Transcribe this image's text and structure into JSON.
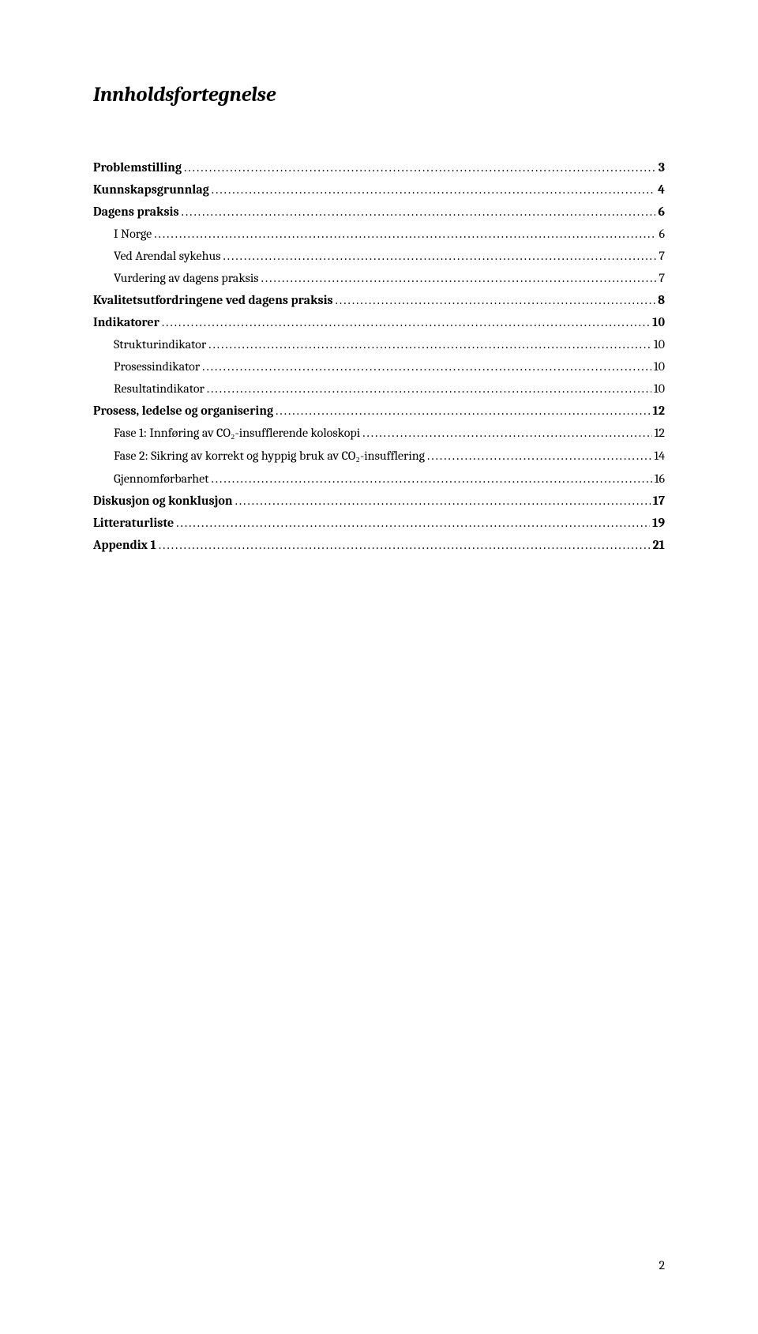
{
  "title": "Innholdsfortegnelse",
  "toc": [
    {
      "label": "Problemstilling",
      "page": "3",
      "bold": true,
      "indent": 0
    },
    {
      "label": "Kunnskapsgrunnlag",
      "page": "4",
      "bold": true,
      "indent": 0
    },
    {
      "label": "Dagens praksis",
      "page": "6",
      "bold": true,
      "indent": 0
    },
    {
      "label": "I Norge",
      "page": "6",
      "bold": false,
      "indent": 1
    },
    {
      "label": "Ved Arendal sykehus",
      "page": "7",
      "bold": false,
      "indent": 1
    },
    {
      "label": "Vurdering av dagens praksis",
      "page": "7",
      "bold": false,
      "indent": 1
    },
    {
      "label": "Kvalitetsutfordringene ved dagens praksis",
      "page": "8",
      "bold": true,
      "indent": 0
    },
    {
      "label": "Indikatorer",
      "page": "10",
      "bold": true,
      "indent": 0
    },
    {
      "label": "Strukturindikator",
      "page": "10",
      "bold": false,
      "indent": 1
    },
    {
      "label": "Prosessindikator",
      "page": "10",
      "bold": false,
      "indent": 1
    },
    {
      "label": "Resultatindikator",
      "page": "10",
      "bold": false,
      "indent": 1
    },
    {
      "label": "Prosess, ledelse og organisering",
      "page": "12",
      "bold": true,
      "indent": 0
    },
    {
      "label": "Fase 1: Innføring av CO₂-insufflerende koloskopi",
      "page": "12",
      "bold": false,
      "indent": 1
    },
    {
      "label": "Fase 2: Sikring av korrekt og hyppig bruk av CO₂-insufflering",
      "page": "14",
      "bold": false,
      "indent": 1
    },
    {
      "label": "Gjennomførbarhet",
      "page": "16",
      "bold": false,
      "indent": 1
    },
    {
      "label": "Diskusjon og konklusjon",
      "page": "17",
      "bold": true,
      "indent": 0
    },
    {
      "label": "Litteraturliste",
      "page": "19",
      "bold": true,
      "indent": 0
    },
    {
      "label": "Appendix 1",
      "page": "21",
      "bold": true,
      "indent": 0
    }
  ],
  "page_number": "2",
  "colors": {
    "background": "#ffffff",
    "text": "#000000"
  },
  "typography": {
    "title_fontsize": 26,
    "body_fontsize": 16,
    "font_family": "Cambria"
  }
}
